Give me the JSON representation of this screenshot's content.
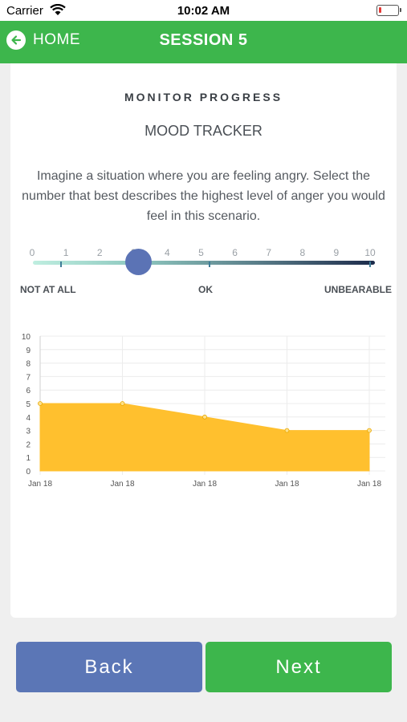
{
  "status": {
    "carrier": "Carrier",
    "time": "10:02 AM"
  },
  "nav": {
    "home_label": "HOME",
    "title": "SESSION 5"
  },
  "content": {
    "heading": "MONITOR PROGRESS",
    "subheading": "MOOD TRACKER",
    "question": "Imagine a situation where you are feeling angry. Select the number that best describes the highest level of anger you would feel in this scenario."
  },
  "slider": {
    "ticks": [
      "0",
      "1",
      "2",
      "3",
      "4",
      "5",
      "6",
      "7",
      "8",
      "9",
      "10"
    ],
    "selected_value": 3,
    "labels": {
      "low": "NOT AT ALL",
      "mid": "OK",
      "high": "UNBEARABLE"
    }
  },
  "chart_data": {
    "type": "area",
    "categories": [
      "Jan 18",
      "Jan 18",
      "Jan 18",
      "Jan 18",
      "Jan 18"
    ],
    "series": [
      {
        "values": [
          5,
          5,
          4,
          3,
          3
        ]
      }
    ],
    "ylim": [
      0,
      10
    ],
    "yticks": [
      "0",
      "1",
      "2",
      "3",
      "4",
      "5",
      "6",
      "7",
      "8",
      "9",
      "10"
    ],
    "grid": true,
    "fill_color": "#ffc02e",
    "point_color": "#ffe08a"
  },
  "buttons": {
    "back": "Back",
    "next": "Next"
  },
  "colors": {
    "green": "#3db64c",
    "blue": "#5b76b6"
  }
}
